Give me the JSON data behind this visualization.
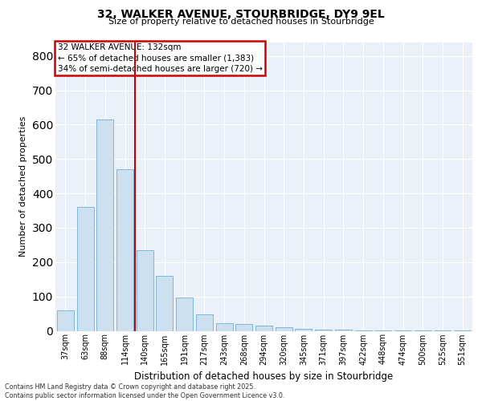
{
  "title_line1": "32, WALKER AVENUE, STOURBRIDGE, DY9 9EL",
  "title_line2": "Size of property relative to detached houses in Stourbridge",
  "xlabel": "Distribution of detached houses by size in Stourbridge",
  "ylabel": "Number of detached properties",
  "categories": [
    "37sqm",
    "63sqm",
    "88sqm",
    "114sqm",
    "140sqm",
    "165sqm",
    "191sqm",
    "217sqm",
    "243sqm",
    "268sqm",
    "294sqm",
    "320sqm",
    "345sqm",
    "371sqm",
    "397sqm",
    "422sqm",
    "448sqm",
    "474sqm",
    "500sqm",
    "525sqm",
    "551sqm"
  ],
  "values": [
    60,
    360,
    615,
    470,
    235,
    160,
    98,
    48,
    22,
    20,
    15,
    10,
    6,
    4,
    3,
    2,
    2,
    1,
    1,
    1,
    1
  ],
  "bar_color": "#cce0f0",
  "bar_edge_color": "#6daed6",
  "vline_x": 4,
  "vline_color": "#cc0000",
  "annotation_text": "32 WALKER AVENUE: 132sqm\n← 65% of detached houses are smaller (1,383)\n34% of semi-detached houses are larger (720) →",
  "annotation_box_edge_color": "#cc0000",
  "ylim": [
    0,
    840
  ],
  "yticks": [
    0,
    100,
    200,
    300,
    400,
    500,
    600,
    700,
    800
  ],
  "footer_line1": "Contains HM Land Registry data © Crown copyright and database right 2025.",
  "footer_line2": "Contains public sector information licensed under the Open Government Licence v3.0.",
  "bg_color": "#eaf0f7",
  "grid_color": "#ffffff"
}
